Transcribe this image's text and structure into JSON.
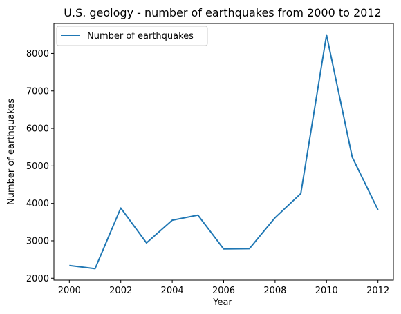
{
  "chart_data": {
    "type": "line",
    "title": "U.S. geology - number of earthquakes from 2000 to 2012",
    "xlabel": "Year",
    "ylabel": "Number of earthquakes",
    "x": [
      2000,
      2001,
      2002,
      2003,
      2004,
      2005,
      2006,
      2007,
      2008,
      2009,
      2010,
      2011,
      2012
    ],
    "series": [
      {
        "name": "Number of earthquakes",
        "color": "#1f77b4",
        "values": [
          2342,
          2257,
          3876,
          2944,
          3550,
          3685,
          2783,
          2791,
          3618,
          4262,
          8494,
          5234,
          3826
        ]
      }
    ],
    "xlim": [
      1999.4,
      2012.6
    ],
    "ylim": [
      1950,
      8800
    ],
    "x_ticks": [
      "2000",
      "2002",
      "2004",
      "2006",
      "2008",
      "2010",
      "2012"
    ],
    "y_ticks": [
      "2000",
      "3000",
      "4000",
      "5000",
      "6000",
      "7000",
      "8000"
    ],
    "grid": false,
    "legend_placement": "top-left"
  }
}
